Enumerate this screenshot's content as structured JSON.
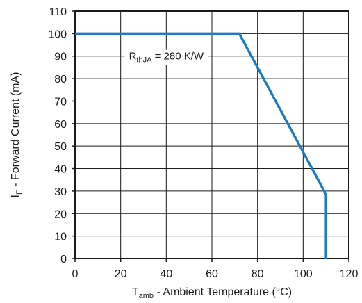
{
  "chart_data": {
    "type": "line",
    "title": "",
    "xlabel": {
      "main": "T",
      "sub": "amb",
      "rest": " - Ambient Temperature (°C)"
    },
    "ylabel": {
      "main": "I",
      "sub": "F",
      "rest": " - Forward Current (mA)"
    },
    "xlim": [
      0,
      120
    ],
    "ylim": [
      0,
      110
    ],
    "xticks": [
      0,
      20,
      40,
      60,
      80,
      100,
      120
    ],
    "yticks": [
      0,
      10,
      20,
      30,
      40,
      50,
      60,
      70,
      80,
      90,
      100,
      110
    ],
    "grid": true,
    "series": [
      {
        "color": "#1f7ac4",
        "x": [
          0,
          72,
          110,
          110
        ],
        "y": [
          100,
          100,
          28.5,
          0
        ]
      }
    ],
    "annotation": {
      "main": "R",
      "sub": "thJA",
      "rest": " = 280 K/W",
      "x": 40,
      "y": 90
    }
  }
}
